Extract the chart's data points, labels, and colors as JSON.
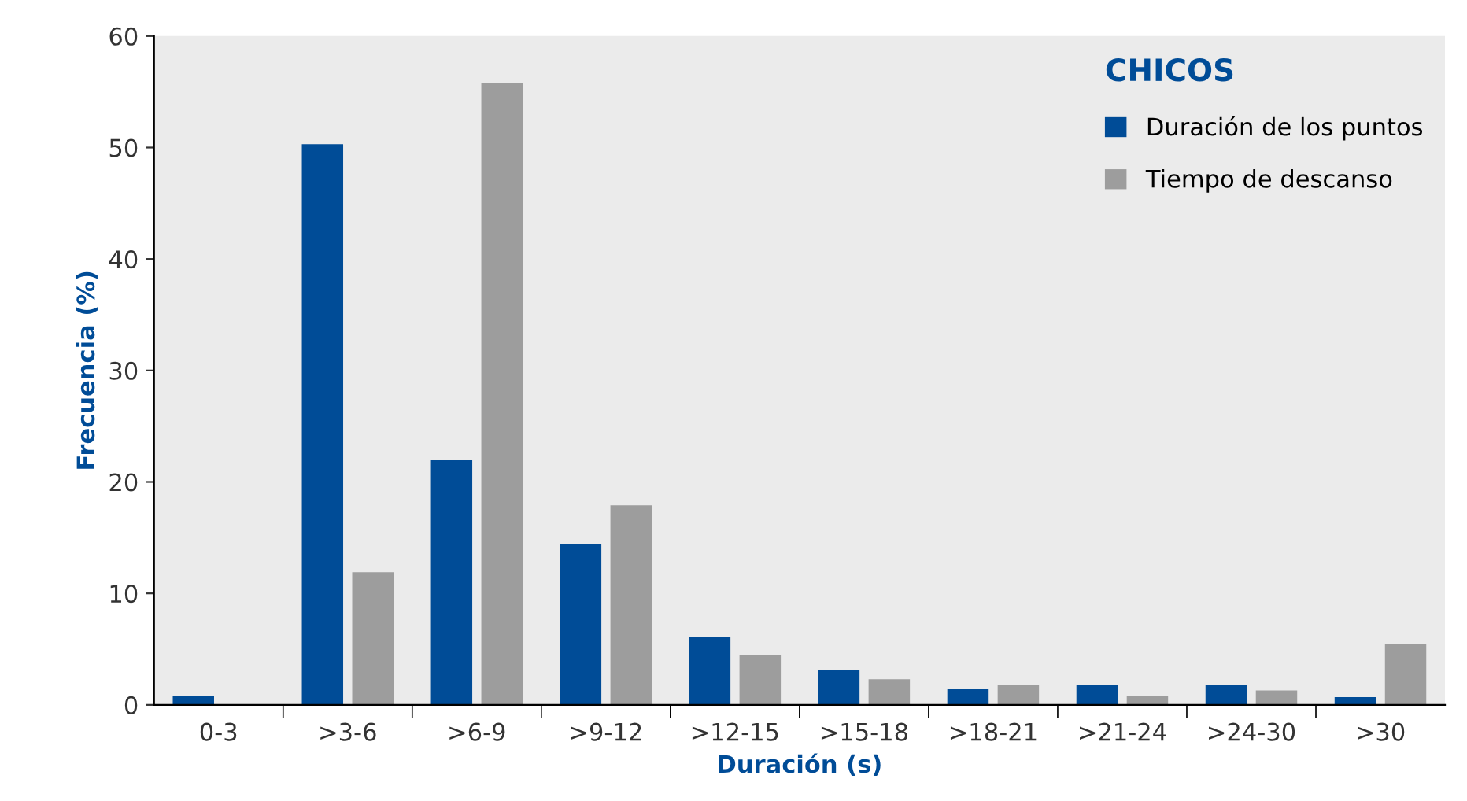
{
  "chart_data": {
    "type": "bar",
    "xlabel": "Duración (s)",
    "ylabel": "Frecuencia (%)",
    "legend_title": "CHICOS",
    "categories": [
      "0-3",
      ">3-6",
      ">6-9",
      ">9-12",
      ">12-15",
      ">15-18",
      ">18-21",
      ">21-24",
      ">24-30",
      ">30"
    ],
    "series": [
      {
        "name": "Duración de los puntos",
        "color": "#004c97",
        "values": [
          0.8,
          50.3,
          22.0,
          14.4,
          6.1,
          3.1,
          1.4,
          1.8,
          1.8,
          0.7
        ]
      },
      {
        "name": "Tiempo de descanso",
        "color": "#9d9d9d",
        "values": [
          0,
          11.9,
          55.8,
          17.9,
          4.5,
          2.3,
          1.8,
          0.8,
          1.3,
          5.5
        ]
      }
    ],
    "ylim": [
      0,
      60
    ],
    "yticks": [
      0,
      10,
      20,
      30,
      40,
      50,
      60
    ],
    "grid": false,
    "legend": "top right"
  }
}
